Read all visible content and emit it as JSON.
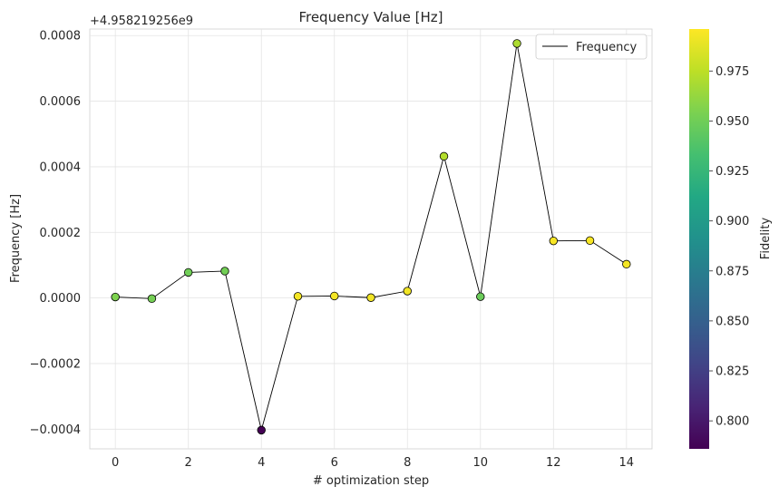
{
  "chart_data": {
    "type": "scatter",
    "title": "Frequency Value [Hz]",
    "xlabel": "# optimization step",
    "ylabel": "Frequency [Hz]",
    "offset_label": "+4.958219256e9",
    "xlim": [
      -0.7,
      14.7
    ],
    "ylim": [
      -0.00046,
      0.00082
    ],
    "xticks": [
      0,
      2,
      4,
      6,
      8,
      10,
      12,
      14
    ],
    "yticks": [
      -0.0004,
      -0.0002,
      0.0,
      0.0002,
      0.0004,
      0.0006,
      0.0008
    ],
    "ytick_labels": [
      "−0.0004",
      "−0.0002",
      "0.0000",
      "0.0002",
      "0.0004",
      "0.0006",
      "0.0008"
    ],
    "grid": true,
    "legend": {
      "position": "top-right",
      "entries": [
        "Frequency"
      ]
    },
    "series": [
      {
        "name": "Frequency",
        "line_color": "#000000",
        "x": [
          0,
          1,
          2,
          3,
          4,
          5,
          6,
          7,
          8,
          9,
          10,
          11,
          12,
          13,
          14
        ],
        "y": [
          3e-06,
          -2e-06,
          7.8e-05,
          8.2e-05,
          -0.000403,
          5e-06,
          6e-06,
          1e-06,
          2.1e-05,
          0.000432,
          4e-06,
          0.000776,
          0.000174,
          0.000175,
          0.000103
        ],
        "fidelity": [
          0.955,
          0.952,
          0.95,
          0.951,
          0.786,
          0.993,
          0.993,
          0.992,
          0.992,
          0.972,
          0.948,
          0.97,
          0.994,
          0.994,
          0.993
        ]
      }
    ],
    "colorbar": {
      "label": "Fidelity",
      "colormap": "viridis",
      "range": [
        0.786,
        0.996
      ],
      "ticks": [
        0.8,
        0.825,
        0.85,
        0.875,
        0.9,
        0.925,
        0.95,
        0.975
      ],
      "tick_labels": [
        "0.800",
        "0.825",
        "0.850",
        "0.875",
        "0.900",
        "0.925",
        "0.950",
        "0.975"
      ]
    }
  }
}
